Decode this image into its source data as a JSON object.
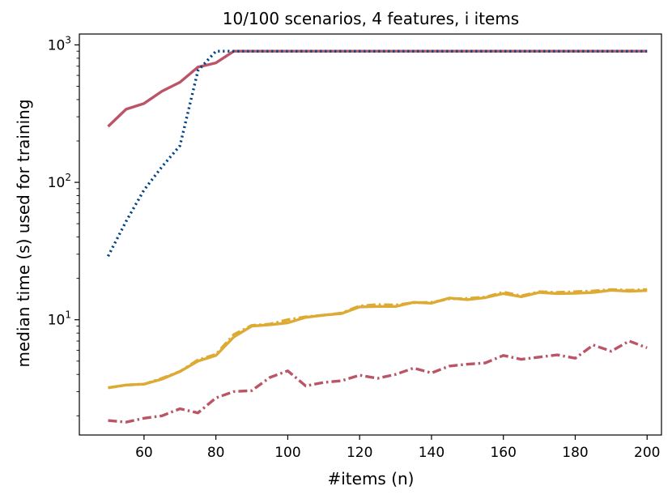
{
  "chart_data": {
    "type": "line",
    "title": "10/100 scenarios, 4 features, i items",
    "xlabel": "#items (n)",
    "ylabel": "median time (s) used for training",
    "xlim": [
      42,
      204
    ],
    "ylim": [
      1.45,
      1200
    ],
    "yscale": "log",
    "xticks": [
      60,
      80,
      100,
      120,
      140,
      160,
      180,
      200
    ],
    "yticks": [
      {
        "value": 10,
        "label": "10",
        "exp": "1"
      },
      {
        "value": 100,
        "label": "10",
        "exp": "2"
      },
      {
        "value": 1000,
        "label": "10",
        "exp": "3"
      }
    ],
    "grid": false,
    "series": [
      {
        "color": "#bb5566",
        "dash": "solid",
        "x": [
          50,
          55,
          60,
          65,
          70,
          75,
          80,
          85,
          90,
          95,
          100,
          105,
          110,
          115,
          120,
          125,
          130,
          135,
          140,
          145,
          150,
          155,
          160,
          165,
          170,
          175,
          180,
          185,
          190,
          195,
          200
        ],
        "y": [
          255,
          340,
          375,
          460,
          535,
          690,
          740,
          900,
          900,
          900,
          900,
          900,
          900,
          900,
          900,
          900,
          900,
          900,
          900,
          900,
          900,
          900,
          900,
          900,
          900,
          900,
          900,
          900,
          900,
          900,
          900
        ]
      },
      {
        "color": "#004488",
        "dash": "dotted",
        "x": [
          50,
          55,
          60,
          65,
          70,
          75,
          80,
          85,
          90,
          95,
          100,
          105,
          110,
          115,
          120,
          125,
          130,
          135,
          140,
          145,
          150,
          155,
          160,
          165,
          170,
          175,
          180,
          185,
          190,
          195,
          200
        ],
        "y": [
          29,
          52,
          88,
          130,
          185,
          650,
          900,
          900,
          900,
          900,
          900,
          900,
          900,
          900,
          900,
          900,
          900,
          900,
          900,
          900,
          900,
          900,
          900,
          900,
          900,
          900,
          900,
          900,
          900,
          900,
          900
        ]
      },
      {
        "color": "#ddaa33",
        "dash": "solid",
        "x": [
          50,
          55,
          60,
          65,
          70,
          75,
          80,
          85,
          90,
          95,
          100,
          105,
          110,
          115,
          120,
          125,
          130,
          135,
          140,
          145,
          150,
          155,
          160,
          165,
          170,
          175,
          180,
          185,
          190,
          195,
          200
        ],
        "y": [
          3.2,
          3.35,
          3.4,
          3.7,
          4.2,
          5.0,
          5.5,
          7.5,
          9.0,
          9.2,
          9.5,
          10.4,
          10.8,
          11.1,
          12.4,
          12.5,
          12.5,
          13.4,
          13.2,
          14.4,
          14.0,
          14.5,
          15.5,
          14.7,
          15.8,
          15.5,
          15.6,
          15.8,
          16.4,
          16.1,
          16.3
        ]
      },
      {
        "color": "#ddaa33",
        "dash": "dashdot",
        "x": [
          50,
          55,
          60,
          65,
          70,
          75,
          80,
          85,
          90,
          95,
          100,
          105,
          110,
          115,
          120,
          125,
          130,
          135,
          140,
          145,
          150,
          155,
          160,
          165,
          170,
          175,
          180,
          185,
          190,
          195,
          200
        ],
        "y": [
          3.2,
          3.35,
          3.4,
          3.75,
          4.2,
          5.1,
          5.6,
          7.8,
          9.1,
          9.3,
          10.0,
          10.5,
          10.8,
          11.2,
          12.6,
          12.9,
          12.8,
          13.3,
          13.4,
          14.2,
          14.3,
          14.6,
          15.9,
          14.9,
          16.0,
          15.8,
          16.0,
          16.2,
          16.6,
          16.4,
          16.6
        ]
      },
      {
        "color": "#bb5566",
        "dash": "dashdot",
        "x": [
          50,
          55,
          60,
          65,
          70,
          75,
          80,
          85,
          90,
          95,
          100,
          105,
          110,
          115,
          120,
          125,
          130,
          135,
          140,
          145,
          150,
          155,
          160,
          165,
          170,
          175,
          180,
          185,
          190,
          195,
          200
        ],
        "y": [
          1.85,
          1.8,
          1.92,
          2.0,
          2.25,
          2.1,
          2.7,
          3.0,
          3.05,
          3.8,
          4.25,
          3.3,
          3.5,
          3.6,
          3.95,
          3.75,
          4.0,
          4.45,
          4.1,
          4.6,
          4.75,
          4.85,
          5.5,
          5.15,
          5.35,
          5.55,
          5.25,
          6.55,
          5.9,
          7.0,
          6.25
        ]
      }
    ]
  }
}
